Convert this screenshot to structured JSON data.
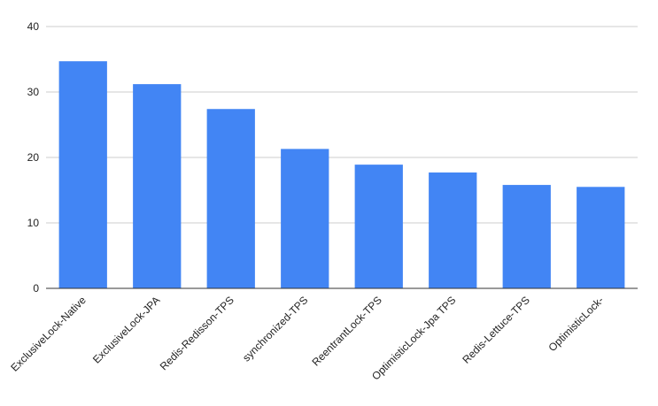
{
  "chart_data": {
    "type": "bar",
    "title": "",
    "xlabel": "",
    "ylabel": "",
    "ylim": [
      0,
      40
    ],
    "yticks": [
      0,
      10,
      20,
      30,
      40
    ],
    "grid": true,
    "legend": "none",
    "categories": [
      "ExclusiveLock-Native",
      "ExclusiveLock-JPA",
      "Redis-Redisson-TPS",
      "synchronized-TPS",
      "ReentrantLock-TPS",
      "OptimisticLock-Jpa TPS",
      "Redis-Lettuce-TPS",
      "OptimisticLock-"
    ],
    "series": [
      {
        "values": [
          34.7,
          31.2,
          27.4,
          21.3,
          18.9,
          17.7,
          15.8,
          15.5
        ],
        "color": "#4285f4"
      }
    ],
    "colors": {
      "bar": "#4285f4",
      "grid": "#cccccc",
      "axis": "#333333",
      "text": "#222222"
    }
  }
}
